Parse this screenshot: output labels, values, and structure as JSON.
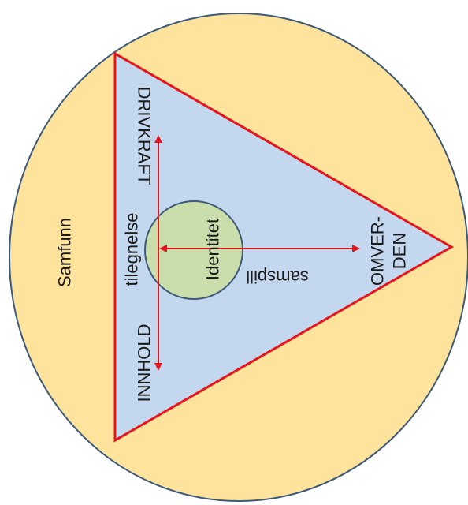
{
  "colors": {
    "outer_fill": "#fde39b",
    "outer_stroke": "#3d5a7a",
    "triangle_fill": "#c3d8ee",
    "triangle_stroke": "#e8141c",
    "inner_fill": "#c9deaa",
    "inner_stroke": "#3d5a7a",
    "arrow": "#e8141c"
  },
  "labels": {
    "samfunn": "Samfunn",
    "drivkraft": "DRIVKRAFT",
    "innhold": "INNHOLD",
    "tilegnelse": "tilegnelse",
    "identitet": "Identitet",
    "samspill": "samspill",
    "omverden_line1": "OMVER-",
    "omverden_line2": "DEN"
  }
}
